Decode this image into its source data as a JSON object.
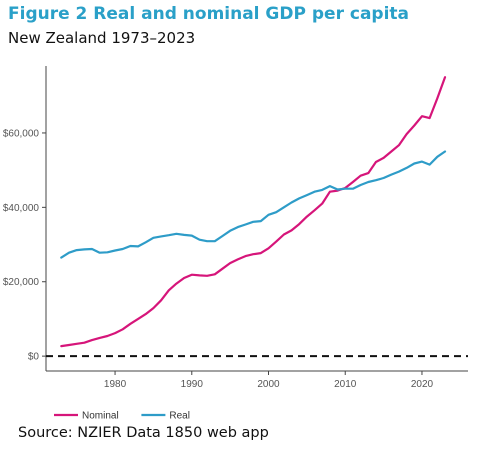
{
  "header": {
    "title": "Figure 2 Real and nominal GDP per capita",
    "subtitle": "New Zealand 1973–2023"
  },
  "footer": {
    "source": "Source: NZIER Data 1850 web app"
  },
  "colors": {
    "title": "#2aa0c8",
    "nominal": "#d6157a",
    "real": "#2e9cc8",
    "zero_line": "#111111",
    "axis": "#444444"
  },
  "chart_data": {
    "type": "line",
    "title": "Figure 2 Real and nominal GDP per capita",
    "subtitle": "New Zealand 1973–2023",
    "xlabel": "",
    "ylabel": "",
    "xlim": [
      1971,
      2026
    ],
    "ylim": [
      -4000,
      78000
    ],
    "grid": false,
    "legend_position": "bottom-left",
    "reference_line": {
      "y": 0,
      "style": "dashed"
    },
    "y_ticks": [
      {
        "value": 0,
        "label": "$0"
      },
      {
        "value": 20000,
        "label": "$20,000"
      },
      {
        "value": 40000,
        "label": "$40,000"
      },
      {
        "value": 60000,
        "label": "$60,000"
      }
    ],
    "x_ticks": [
      {
        "value": 1980,
        "label": "1980"
      },
      {
        "value": 1990,
        "label": "1990"
      },
      {
        "value": 2000,
        "label": "2000"
      },
      {
        "value": 2010,
        "label": "2010"
      },
      {
        "value": 2020,
        "label": "2020"
      }
    ],
    "x": [
      1973,
      1974,
      1975,
      1976,
      1977,
      1978,
      1979,
      1980,
      1981,
      1982,
      1983,
      1984,
      1985,
      1986,
      1987,
      1988,
      1989,
      1990,
      1991,
      1992,
      1993,
      1994,
      1995,
      1996,
      1997,
      1998,
      1999,
      2000,
      2001,
      2002,
      2003,
      2004,
      2005,
      2006,
      2007,
      2008,
      2009,
      2010,
      2011,
      2012,
      2013,
      2014,
      2015,
      2016,
      2017,
      2018,
      2019,
      2020,
      2021,
      2022,
      2023
    ],
    "series": [
      {
        "name": "Nominal",
        "color": "#d6157a",
        "values": [
          2700,
          3000,
          3300,
          3600,
          4300,
          4900,
          5400,
          6200,
          7200,
          8700,
          10000,
          11300,
          12900,
          15000,
          17700,
          19500,
          21000,
          21900,
          21700,
          21600,
          22000,
          23500,
          25000,
          26000,
          26900,
          27400,
          27700,
          29000,
          30800,
          32700,
          33800,
          35500,
          37500,
          39200,
          41000,
          44200,
          44500,
          45200,
          46800,
          48500,
          49200,
          52200,
          53300,
          55000,
          56700,
          59700,
          62000,
          64500,
          64000,
          69300,
          75000
        ]
      },
      {
        "name": "Real",
        "color": "#2e9cc8",
        "values": [
          26500,
          27800,
          28500,
          28700,
          28800,
          27800,
          27900,
          28400,
          28800,
          29600,
          29500,
          30600,
          31800,
          32200,
          32500,
          32900,
          32600,
          32400,
          31300,
          30900,
          30900,
          32300,
          33700,
          34700,
          35400,
          36100,
          36300,
          38000,
          38700,
          40000,
          41300,
          42400,
          43300,
          44200,
          44700,
          45700,
          44800,
          45000,
          45000,
          46000,
          46800,
          47300,
          47900,
          48800,
          49600,
          50600,
          51800,
          52300,
          51500,
          53600,
          55000
        ]
      }
    ]
  }
}
